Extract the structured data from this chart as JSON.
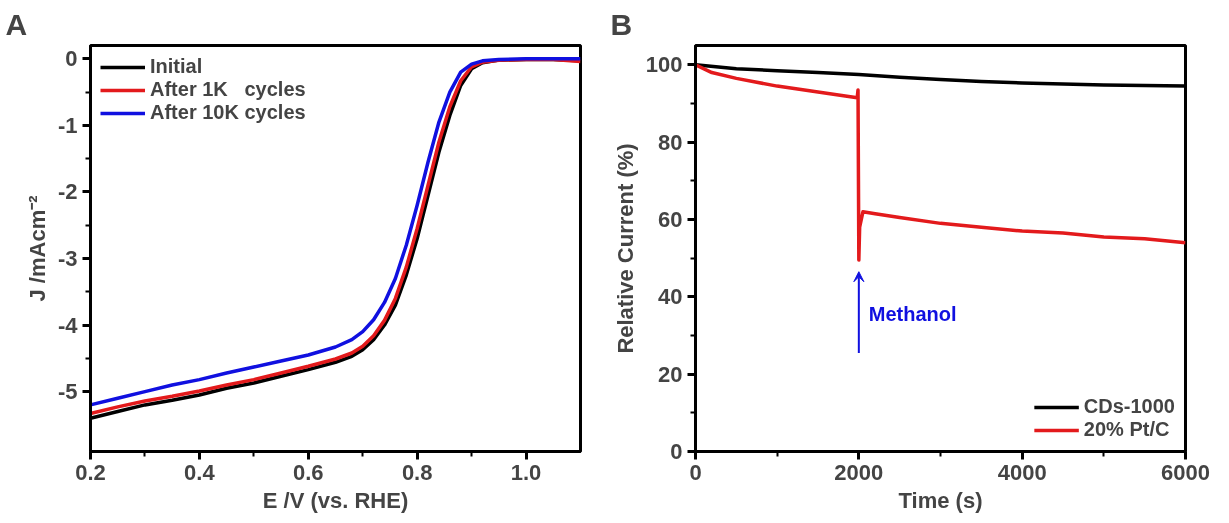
{
  "chart_data": [
    {
      "type": "line",
      "title": "A",
      "xlabel": "E /V (vs. RHE)",
      "ylabel": "J /mAcm⁻²",
      "x": [
        0.2,
        0.25,
        0.3,
        0.35,
        0.4,
        0.45,
        0.5,
        0.55,
        0.6,
        0.65,
        0.68,
        0.7,
        0.72,
        0.74,
        0.76,
        0.78,
        0.8,
        0.82,
        0.84,
        0.86,
        0.88,
        0.9,
        0.92,
        0.95,
        1.0,
        1.05,
        1.1
      ],
      "series": [
        {
          "name": "Initial",
          "color": "#000000",
          "values": [
            -5.4,
            -5.3,
            -5.2,
            -5.13,
            -5.05,
            -4.95,
            -4.87,
            -4.77,
            -4.67,
            -4.56,
            -4.47,
            -4.37,
            -4.22,
            -4.0,
            -3.7,
            -3.25,
            -2.7,
            -2.05,
            -1.4,
            -0.85,
            -0.4,
            -0.15,
            -0.06,
            -0.02,
            -0.01,
            -0.01,
            -0.03
          ]
        },
        {
          "name": "After 1K   cycles",
          "color": "#e31a1c",
          "values": [
            -5.33,
            -5.23,
            -5.14,
            -5.07,
            -4.99,
            -4.9,
            -4.82,
            -4.72,
            -4.62,
            -4.51,
            -4.42,
            -4.32,
            -4.16,
            -3.93,
            -3.6,
            -3.13,
            -2.55,
            -1.9,
            -1.25,
            -0.72,
            -0.33,
            -0.12,
            -0.05,
            -0.02,
            -0.01,
            -0.01,
            -0.04
          ]
        },
        {
          "name": "After 10K cycles",
          "color": "#1010e0",
          "values": [
            -5.2,
            -5.1,
            -5.0,
            -4.9,
            -4.82,
            -4.72,
            -4.63,
            -4.54,
            -4.45,
            -4.33,
            -4.22,
            -4.1,
            -3.92,
            -3.66,
            -3.3,
            -2.8,
            -2.2,
            -1.55,
            -0.95,
            -0.5,
            -0.2,
            -0.08,
            -0.03,
            -0.01,
            0,
            0,
            0
          ]
        }
      ],
      "xlim": [
        0.2,
        1.1
      ],
      "ylim": [
        -5.9,
        0.2
      ],
      "xticks": [
        {
          "value": 0.2,
          "label": "0.2"
        },
        {
          "value": 0.4,
          "label": "0.4"
        },
        {
          "value": 0.6,
          "label": "0.6"
        },
        {
          "value": 0.8,
          "label": "0.8"
        },
        {
          "value": 1.0,
          "label": "1.0"
        }
      ],
      "yticks": [
        0,
        -1,
        -2,
        -3,
        -4,
        -5
      ],
      "legend": "top left",
      "grid": false,
      "marker": "none",
      "line_style": "solid"
    },
    {
      "type": "line",
      "title": "B",
      "xlabel": "Time (s)",
      "ylabel": "Relative Current (%)",
      "series": [
        {
          "name": "CDs-1000",
          "color": "#000000",
          "x": [
            0,
            500,
            1000,
            1500,
            2000,
            2500,
            3000,
            3500,
            4000,
            5000,
            6000
          ],
          "values": [
            100,
            99,
            98.5,
            98,
            97.5,
            96.8,
            96.2,
            95.7,
            95.3,
            94.8,
            94.5
          ]
        },
        {
          "name": "20% Pt/C",
          "color": "#e31a1c",
          "x": [
            0,
            200,
            500,
            1000,
            1500,
            1980,
            1990,
            2000,
            2010,
            2050,
            2200,
            2500,
            3000,
            3500,
            4000,
            4500,
            5000,
            5500,
            6000
          ],
          "values": [
            100,
            98,
            96.5,
            94.5,
            93,
            91.5,
            93.5,
            49.5,
            58,
            62,
            61.5,
            60.5,
            59,
            58,
            57,
            56.5,
            55.5,
            55,
            54
          ]
        }
      ],
      "xlim": [
        0,
        6000
      ],
      "ylim": [
        0,
        105
      ],
      "xticks": [
        0,
        2000,
        4000,
        6000
      ],
      "yticks": [
        0,
        20,
        40,
        60,
        80,
        100
      ],
      "annotations": [
        {
          "text": "Methanol",
          "x": 2000,
          "y": 49.5
        }
      ],
      "legend": "bottom right",
      "grid": false,
      "marker": "none",
      "line_style": "solid"
    }
  ]
}
